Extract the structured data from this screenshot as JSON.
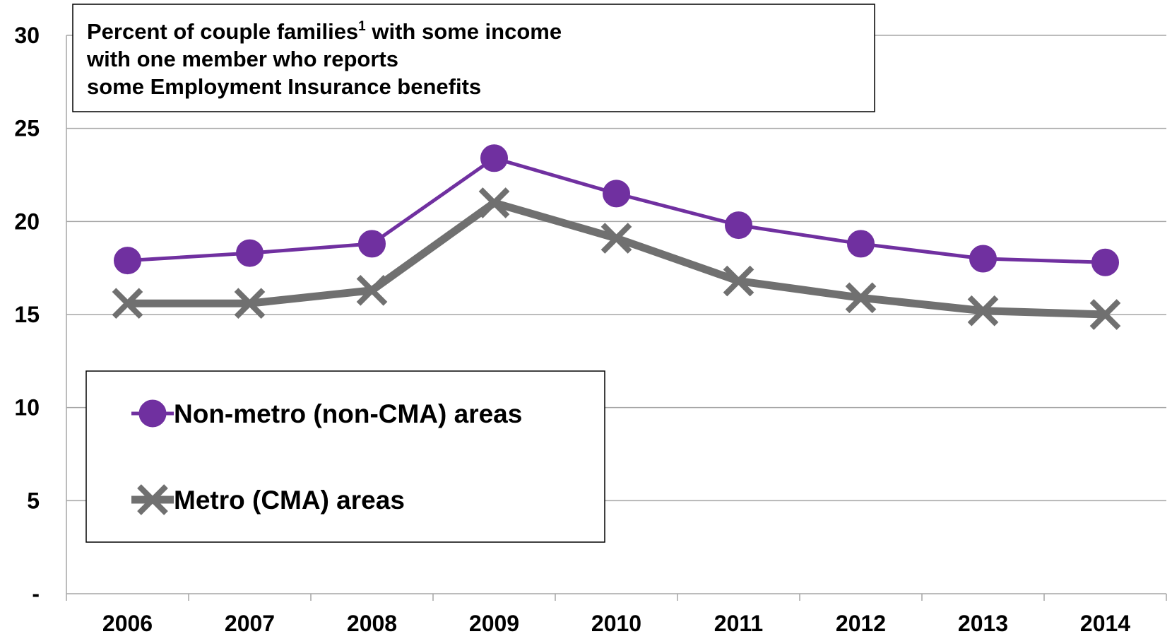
{
  "chart_data": {
    "type": "line",
    "title_lines": [
      {
        "text": "Percent of couple families",
        "sup": "1",
        "rest": " with some income"
      },
      {
        "text": "with one member who reports"
      },
      {
        "text": "some Employment Insurance benefits"
      }
    ],
    "categories": [
      "2006",
      "2007",
      "2008",
      "2009",
      "2010",
      "2011",
      "2012",
      "2013",
      "2014"
    ],
    "y_tick_labels": [
      "-",
      "5",
      "10",
      "15",
      "20",
      "25",
      "30"
    ],
    "ylim": [
      0,
      30
    ],
    "grid": "horizontal",
    "legend_placement": "lower-left",
    "series": [
      {
        "name": "Non-metro (non-CMA) areas",
        "values": [
          17.9,
          18.3,
          18.8,
          23.4,
          21.5,
          19.8,
          18.8,
          18.0,
          17.8
        ],
        "color": "#7030a0",
        "marker": "circle"
      },
      {
        "name": "Metro (CMA) areas",
        "values": [
          15.6,
          15.6,
          16.3,
          21.0,
          19.1,
          16.8,
          15.9,
          15.2,
          15.0
        ],
        "color": "#707070",
        "marker": "x"
      }
    ]
  }
}
